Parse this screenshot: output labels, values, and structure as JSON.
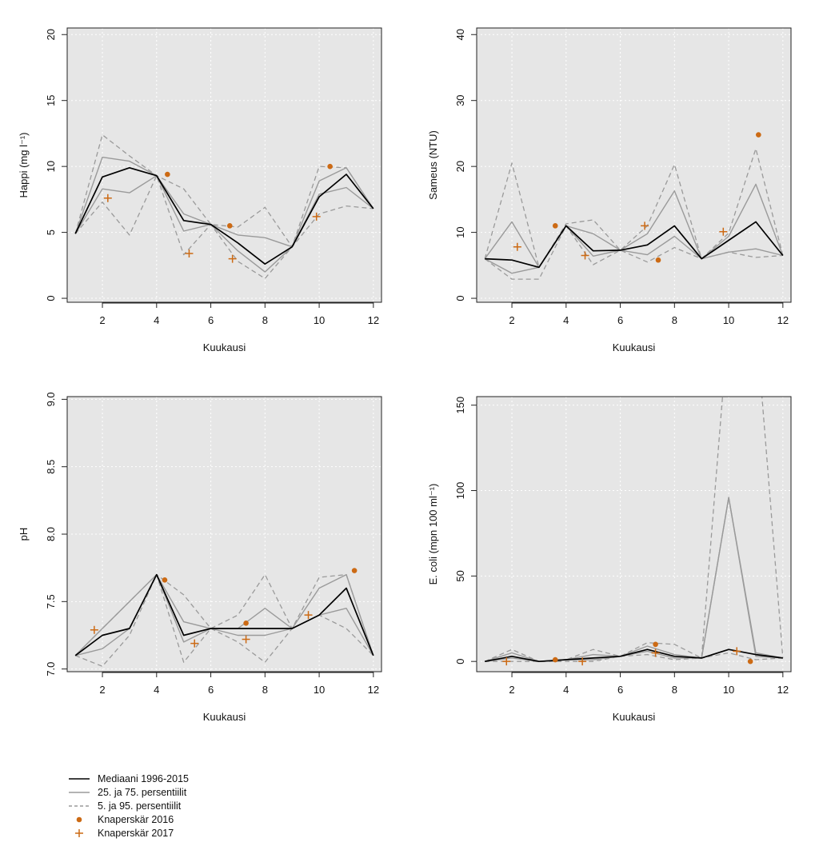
{
  "colors": {
    "panel_bg": "#e6e6e6",
    "grid": "#ffffff",
    "median": "#000000",
    "quartile": "#9a9a9a",
    "percentile": "#9a9a9a",
    "obs2016": "#cc6a14",
    "obs2017": "#cc6a14"
  },
  "legend": {
    "items": [
      {
        "label": "Mediaani 1996-2015",
        "style": "median"
      },
      {
        "label": "25. ja 75. persentiilit",
        "style": "quartile"
      },
      {
        "label": "5. ja 95. persentiilit",
        "style": "percentile"
      },
      {
        "label": "Knaperskär 2016",
        "style": "obs2016"
      },
      {
        "label": "Knaperskär 2017",
        "style": "obs2017"
      }
    ]
  },
  "chart_data": [
    {
      "type": "line",
      "xlabel": "Kuukausi",
      "ylabel": "Happi (mg l⁻¹)",
      "xlim": [
        0.7,
        12.3
      ],
      "ylim": [
        -0.3,
        20.5
      ],
      "xticks": [
        2,
        4,
        6,
        8,
        10,
        12
      ],
      "yticks": [
        0,
        5,
        10,
        15,
        20
      ],
      "x": [
        1,
        2,
        3,
        4,
        5,
        6,
        7,
        8,
        9,
        10,
        11,
        12
      ],
      "series": [
        {
          "name": "Mediaani 1996-2015",
          "role": "median",
          "values": [
            4.9,
            9.2,
            9.9,
            9.3,
            5.9,
            5.6,
            4.2,
            2.6,
            3.9,
            7.7,
            9.4,
            6.8
          ]
        },
        {
          "name": "25. ja 75. persentiilit",
          "role": "p25",
          "values": [
            4.9,
            8.3,
            8.0,
            9.3,
            5.1,
            5.6,
            4.8,
            4.6,
            3.9,
            7.9,
            8.4,
            6.8
          ]
        },
        {
          "name": "25. ja 75. persentiilit",
          "role": "p75",
          "values": [
            4.9,
            10.7,
            10.4,
            9.3,
            6.4,
            5.6,
            3.6,
            2.0,
            3.9,
            8.9,
            9.9,
            6.8
          ]
        },
        {
          "name": "5. ja 95. persentiilit",
          "role": "p5",
          "values": [
            4.9,
            7.3,
            4.8,
            9.3,
            3.3,
            5.6,
            2.8,
            1.5,
            3.9,
            6.4,
            7.0,
            6.8
          ]
        },
        {
          "name": "5. ja 95. persentiilit",
          "role": "p95",
          "values": [
            4.9,
            12.4,
            10.8,
            9.3,
            8.3,
            5.6,
            5.4,
            6.9,
            3.9,
            10.0,
            9.9,
            6.8
          ]
        }
      ],
      "points_2016": [
        {
          "x": 4.4,
          "y": 9.4
        },
        {
          "x": 6.7,
          "y": 5.5
        },
        {
          "x": 10.4,
          "y": 10.0
        }
      ],
      "points_2017": [
        {
          "x": 2.2,
          "y": 7.6
        },
        {
          "x": 5.2,
          "y": 3.4
        },
        {
          "x": 6.8,
          "y": 3.0
        },
        {
          "x": 9.9,
          "y": 6.2
        }
      ]
    },
    {
      "type": "line",
      "xlabel": "Kuukausi",
      "ylabel": "Sameus (NTU)",
      "xlim": [
        0.7,
        12.3
      ],
      "ylim": [
        -0.6,
        41
      ],
      "xticks": [
        2,
        4,
        6,
        8,
        10,
        12
      ],
      "yticks": [
        0,
        10,
        20,
        30,
        40
      ],
      "x": [
        1,
        2,
        3,
        4,
        5,
        6,
        7,
        8,
        9,
        10,
        11,
        12
      ],
      "series": [
        {
          "name": "Mediaani 1996-2015",
          "role": "median",
          "values": [
            6.0,
            5.8,
            4.7,
            11.0,
            7.2,
            7.3,
            8.1,
            11.0,
            6.0,
            8.8,
            11.6,
            6.5
          ]
        },
        {
          "name": "25. ja 75. persentiilit",
          "role": "p25",
          "values": [
            6.0,
            3.8,
            4.7,
            11.0,
            6.4,
            7.3,
            6.6,
            9.4,
            6.0,
            7.0,
            7.5,
            6.5
          ]
        },
        {
          "name": "25. ja 75. persentiilit",
          "role": "p75",
          "values": [
            6.0,
            11.6,
            4.7,
            11.0,
            9.8,
            7.3,
            9.8,
            16.3,
            6.0,
            9.4,
            17.3,
            6.5
          ]
        },
        {
          "name": "5. ja 95. persentiilit",
          "role": "p5",
          "values": [
            6.0,
            2.9,
            2.9,
            11.0,
            5.1,
            7.3,
            5.5,
            7.7,
            6.0,
            7.0,
            6.2,
            6.5
          ]
        },
        {
          "name": "5. ja 95. persentiilit",
          "role": "p95",
          "values": [
            6.0,
            20.5,
            4.7,
            11.3,
            11.9,
            7.3,
            11.0,
            20.3,
            6.0,
            9.9,
            22.7,
            6.5
          ]
        }
      ],
      "points_2016": [
        {
          "x": 3.6,
          "y": 11.0
        },
        {
          "x": 7.4,
          "y": 5.8
        },
        {
          "x": 11.1,
          "y": 24.8
        }
      ],
      "points_2017": [
        {
          "x": 2.2,
          "y": 7.8
        },
        {
          "x": 4.7,
          "y": 6.5
        },
        {
          "x": 6.9,
          "y": 11.0
        },
        {
          "x": 9.8,
          "y": 10.1
        }
      ]
    },
    {
      "type": "line",
      "xlabel": "Kuukausi",
      "ylabel": "pH",
      "xlim": [
        0.7,
        12.3
      ],
      "ylim": [
        6.98,
        9.02
      ],
      "xticks": [
        2,
        4,
        6,
        8,
        10,
        12
      ],
      "yticks": [
        7.0,
        7.5,
        8.0,
        8.5,
        9.0
      ],
      "ytick_labels": [
        "7.0",
        "7.5",
        "8.0",
        "8.5",
        "9.0"
      ],
      "x": [
        1,
        2,
        3,
        4,
        5,
        6,
        7,
        8,
        9,
        10,
        11,
        12
      ],
      "series": [
        {
          "name": "Mediaani 1996-2015",
          "role": "median",
          "values": [
            7.1,
            7.25,
            7.3,
            7.7,
            7.25,
            7.3,
            7.3,
            7.3,
            7.3,
            7.4,
            7.6,
            7.1
          ]
        },
        {
          "name": "25. ja 75. persentiilit",
          "role": "p25",
          "values": [
            7.1,
            7.15,
            7.3,
            7.7,
            7.2,
            7.3,
            7.25,
            7.25,
            7.3,
            7.4,
            7.45,
            7.1
          ]
        },
        {
          "name": "25. ja 75. persentiilit",
          "role": "p75",
          "values": [
            7.1,
            7.3,
            7.5,
            7.7,
            7.35,
            7.3,
            7.3,
            7.45,
            7.3,
            7.6,
            7.7,
            7.1
          ]
        },
        {
          "name": "5. ja 95. persentiilit",
          "role": "p5",
          "values": [
            7.1,
            7.02,
            7.25,
            7.7,
            7.05,
            7.3,
            7.2,
            7.05,
            7.3,
            7.4,
            7.3,
            7.1
          ]
        },
        {
          "name": "5. ja 95. persentiilit",
          "role": "p95",
          "values": [
            7.1,
            7.3,
            7.5,
            7.7,
            7.55,
            7.3,
            7.4,
            7.7,
            7.3,
            7.68,
            7.7,
            7.1
          ]
        }
      ],
      "points_2016": [
        {
          "x": 4.3,
          "y": 7.66
        },
        {
          "x": 7.3,
          "y": 7.34
        },
        {
          "x": 11.3,
          "y": 7.73
        }
      ],
      "points_2017": [
        {
          "x": 1.7,
          "y": 7.29
        },
        {
          "x": 5.4,
          "y": 7.19
        },
        {
          "x": 7.3,
          "y": 7.22
        },
        {
          "x": 9.6,
          "y": 7.4
        }
      ]
    },
    {
      "type": "line",
      "xlabel": "Kuukausi",
      "ylabel": "E. coli (mpn 100 ml⁻¹)",
      "xlim": [
        0.7,
        12.3
      ],
      "ylim": [
        -6,
        155
      ],
      "xticks": [
        2,
        4,
        6,
        8,
        10,
        12
      ],
      "yticks": [
        0,
        50,
        100,
        150
      ],
      "x": [
        1,
        2,
        3,
        4,
        5,
        6,
        7,
        8,
        9,
        10,
        11,
        12
      ],
      "series": [
        {
          "name": "Mediaani 1996-2015",
          "role": "median",
          "values": [
            0,
            3,
            0,
            1,
            2,
            3,
            7,
            3,
            2,
            7,
            4,
            2
          ]
        },
        {
          "name": "25. ja 75. persentiilit",
          "role": "p25",
          "values": [
            0,
            2,
            0,
            1,
            1,
            3,
            6,
            2,
            2,
            96,
            3,
            2
          ]
        },
        {
          "name": "25. ja 75. persentiilit",
          "role": "p75",
          "values": [
            0,
            5,
            0,
            1,
            4,
            3,
            9,
            4,
            2,
            96,
            5,
            2
          ]
        },
        {
          "name": "5. ja 95. persentiilit",
          "role": "p5",
          "values": [
            0,
            0,
            0,
            0,
            0,
            3,
            4,
            1,
            2,
            5,
            1,
            2
          ]
        },
        {
          "name": "5. ja 95. persentiilit",
          "role": "p95",
          "values": [
            0,
            7,
            0,
            1,
            7,
            3,
            11,
            10,
            2,
            200,
            200,
            2
          ]
        }
      ],
      "points_2016": [
        {
          "x": 3.6,
          "y": 1
        },
        {
          "x": 7.3,
          "y": 10
        },
        {
          "x": 10.8,
          "y": 0
        }
      ],
      "points_2017": [
        {
          "x": 1.8,
          "y": 0
        },
        {
          "x": 4.6,
          "y": 0
        },
        {
          "x": 7.3,
          "y": 5
        },
        {
          "x": 10.3,
          "y": 6
        }
      ]
    }
  ]
}
